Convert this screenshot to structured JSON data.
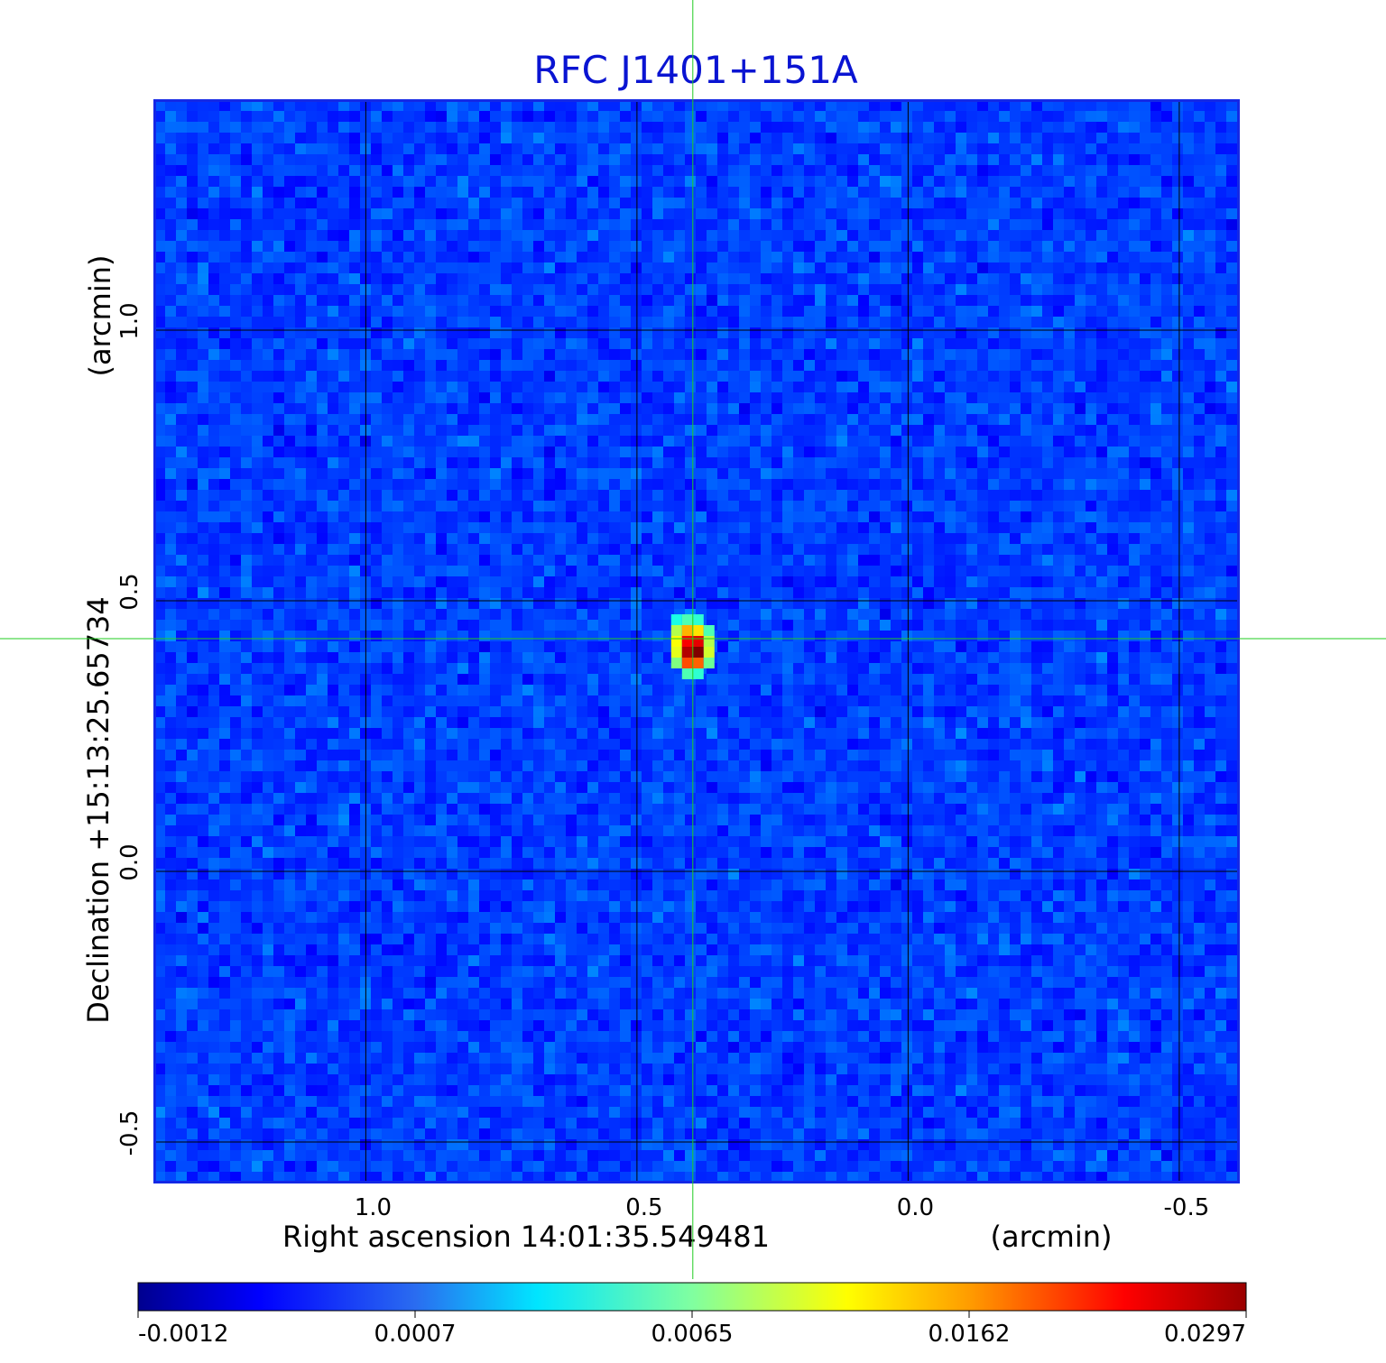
{
  "chart_data": {
    "type": "heatmap",
    "title": "RFC J1401+151A",
    "xlabel": "Right ascension  14:01:35.549481",
    "xunit": "(arcmin)",
    "ylabel": "Declination  +15:13:25.65734",
    "yunit": "(arcmin)",
    "xlim": [
      1.39,
      -0.61
    ],
    "ylim": [
      -0.575,
      1.425
    ],
    "x_ticks": [
      1.0,
      0.5,
      0.0,
      -0.5
    ],
    "x_tick_labels": [
      "1.0",
      "0.5",
      "0.0",
      "-0.5"
    ],
    "y_ticks": [
      1.0,
      0.5,
      0.0,
      -0.5
    ],
    "y_tick_labels": [
      "1.0",
      "0.5",
      "0.0",
      "-0.5"
    ],
    "grid": true,
    "crosshair": {
      "x": 0.397,
      "y": 0.43,
      "color": "#22cc22"
    },
    "source": {
      "x": 0.397,
      "y": 0.415,
      "peak": 0.0297
    },
    "colormap": "jet",
    "colorbar": {
      "orientation": "horizontal",
      "range": [
        -0.0012,
        0.0297
      ],
      "tick_labels": [
        "-0.0012",
        "0.0007",
        "0.0065",
        "0.0162",
        "0.0297"
      ]
    },
    "frame_color": "#1428e6"
  }
}
